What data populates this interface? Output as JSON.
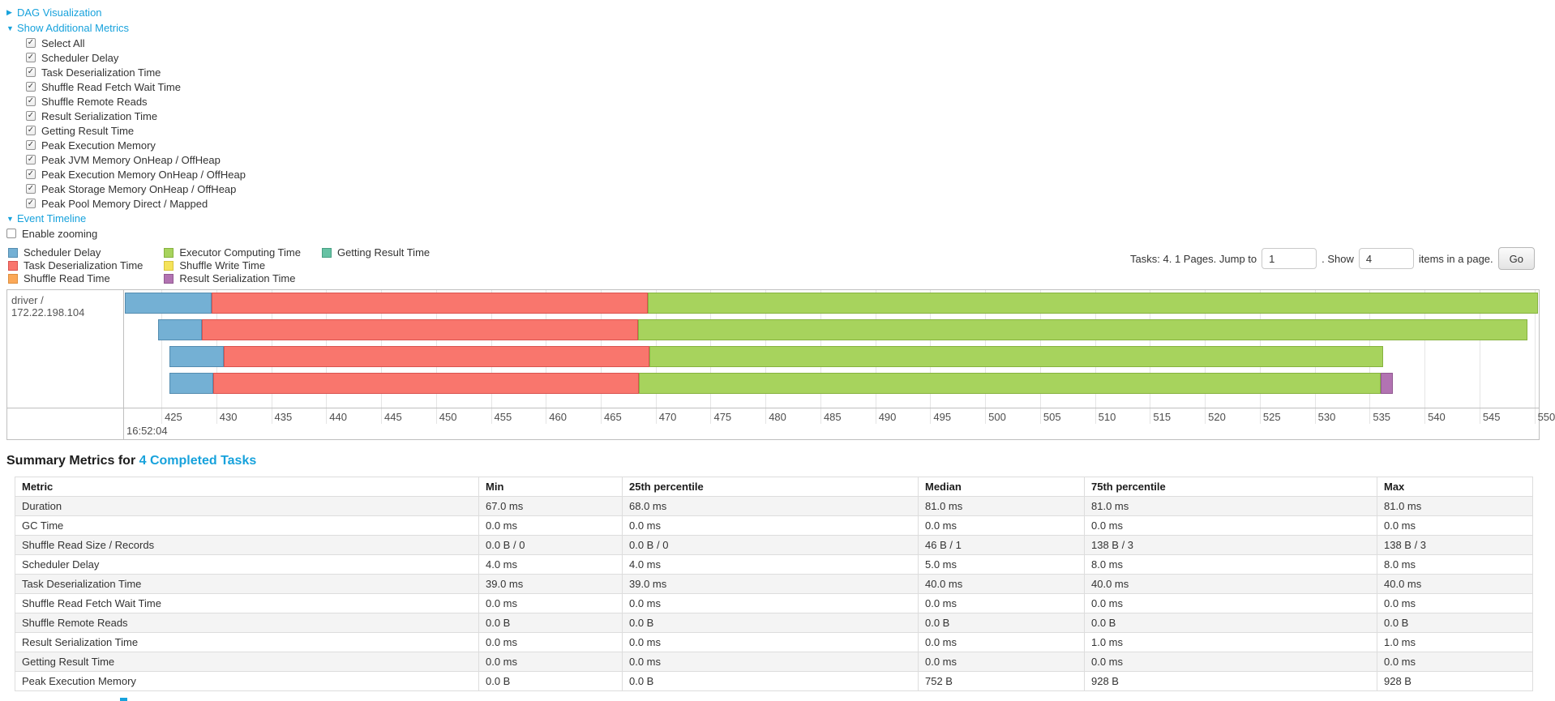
{
  "nav": {
    "dag_label": "DAG Visualization",
    "metrics_label": "Show Additional Metrics",
    "timeline_label": "Event Timeline",
    "enable_zooming_label": "Enable zooming"
  },
  "metric_checkboxes": [
    {
      "label": "Select All",
      "checked": true
    },
    {
      "label": "Scheduler Delay",
      "checked": true
    },
    {
      "label": "Task Deserialization Time",
      "checked": true
    },
    {
      "label": "Shuffle Read Fetch Wait Time",
      "checked": true
    },
    {
      "label": "Shuffle Remote Reads",
      "checked": true
    },
    {
      "label": "Result Serialization Time",
      "checked": true
    },
    {
      "label": "Getting Result Time",
      "checked": true
    },
    {
      "label": "Peak Execution Memory",
      "checked": true
    },
    {
      "label": "Peak JVM Memory OnHeap / OffHeap",
      "checked": true
    },
    {
      "label": "Peak Execution Memory OnHeap / OffHeap",
      "checked": true
    },
    {
      "label": "Peak Storage Memory OnHeap / OffHeap",
      "checked": true
    },
    {
      "label": "Peak Pool Memory Direct / Mapped",
      "checked": true
    }
  ],
  "pagination": {
    "prefix": "Tasks: 4. 1 Pages. Jump to",
    "jump_value": "1",
    "mid": ". Show",
    "show_value": "4",
    "suffix": "items in a page.",
    "go_label": "Go"
  },
  "chart_data": {
    "type": "timeline",
    "group_label": "driver / 172.22.198.104",
    "x_axis": {
      "min": 421.6,
      "max": 550.4,
      "ticks": [
        425,
        430,
        435,
        440,
        445,
        450,
        455,
        460,
        465,
        470,
        475,
        480,
        485,
        490,
        495,
        500,
        505,
        510,
        515,
        520,
        525,
        530,
        535,
        540,
        545,
        550
      ],
      "major_tick_label": "16:52:04"
    },
    "series": [
      {
        "id": "scheduler-delay",
        "label": "Scheduler Delay",
        "color": "#74B0D4",
        "border": "#548CB0"
      },
      {
        "id": "task-deserialization-time",
        "label": "Task Deserialization Time",
        "color": "#F9766D",
        "border": "#D9534F"
      },
      {
        "id": "shuffle-read-time",
        "label": "Shuffle Read Time",
        "color": "#FBA857",
        "border": "#DE8F3F"
      },
      {
        "id": "executor-computing-time",
        "label": "Executor Computing Time",
        "color": "#A7D35D",
        "border": "#86B23F"
      },
      {
        "id": "shuffle-write-time",
        "label": "Shuffle Write Time",
        "color": "#F5E35A",
        "border": "#D8C43E"
      },
      {
        "id": "result-serialization-time",
        "label": "Result Serialization Time",
        "color": "#B273B2",
        "border": "#925A92"
      },
      {
        "id": "getting-result-time",
        "label": "Getting Result Time",
        "color": "#66C2A4",
        "border": "#47A083"
      }
    ],
    "legend_layout": [
      [
        0,
        1,
        2
      ],
      [
        3,
        4,
        5
      ],
      [
        6
      ]
    ],
    "tasks": [
      {
        "segments": [
          {
            "series": "scheduler-delay",
            "start": 421.7,
            "end": 429.6
          },
          {
            "series": "task-deserialization-time",
            "start": 429.6,
            "end": 469.3
          },
          {
            "series": "executor-computing-time",
            "start": 469.3,
            "end": 550.3
          }
        ]
      },
      {
        "segments": [
          {
            "series": "scheduler-delay",
            "start": 424.7,
            "end": 428.7
          },
          {
            "series": "task-deserialization-time",
            "start": 428.7,
            "end": 468.4
          },
          {
            "series": "executor-computing-time",
            "start": 468.4,
            "end": 549.4
          }
        ]
      },
      {
        "segments": [
          {
            "series": "scheduler-delay",
            "start": 425.7,
            "end": 430.7
          },
          {
            "series": "task-deserialization-time",
            "start": 430.7,
            "end": 469.4
          },
          {
            "series": "executor-computing-time",
            "start": 469.4,
            "end": 536.2
          }
        ]
      },
      {
        "segments": [
          {
            "series": "scheduler-delay",
            "start": 425.7,
            "end": 429.7
          },
          {
            "series": "task-deserialization-time",
            "start": 429.7,
            "end": 468.5
          },
          {
            "series": "executor-computing-time",
            "start": 468.5,
            "end": 536.0
          },
          {
            "series": "result-serialization-time",
            "start": 536.0,
            "end": 537.1
          }
        ]
      }
    ]
  },
  "summary": {
    "title_prefix": "Summary Metrics for ",
    "title_link": "4 Completed Tasks",
    "table": {
      "headers": [
        "Metric",
        "Min",
        "25th percentile",
        "Median",
        "75th percentile",
        "Max"
      ],
      "rows": [
        {
          "metric": "Duration",
          "values": [
            "67.0 ms",
            "68.0 ms",
            "81.0 ms",
            "81.0 ms",
            "81.0 ms"
          ]
        },
        {
          "metric": "GC Time",
          "values": [
            "0.0 ms",
            "0.0 ms",
            "0.0 ms",
            "0.0 ms",
            "0.0 ms"
          ]
        },
        {
          "metric": "Shuffle Read Size / Records",
          "values": [
            "0.0 B / 0",
            "0.0 B / 0",
            "46 B / 1",
            "138 B / 3",
            "138 B / 3"
          ]
        },
        {
          "metric": "Scheduler Delay",
          "values": [
            "4.0 ms",
            "4.0 ms",
            "5.0 ms",
            "8.0 ms",
            "8.0 ms"
          ]
        },
        {
          "metric": "Task Deserialization Time",
          "values": [
            "39.0 ms",
            "39.0 ms",
            "40.0 ms",
            "40.0 ms",
            "40.0 ms"
          ]
        },
        {
          "metric": "Shuffle Read Fetch Wait Time",
          "values": [
            "0.0 ms",
            "0.0 ms",
            "0.0 ms",
            "0.0 ms",
            "0.0 ms"
          ]
        },
        {
          "metric": "Shuffle Remote Reads",
          "values": [
            "0.0 B",
            "0.0 B",
            "0.0 B",
            "0.0 B",
            "0.0 B"
          ]
        },
        {
          "metric": "Result Serialization Time",
          "values": [
            "0.0 ms",
            "0.0 ms",
            "0.0 ms",
            "1.0 ms",
            "1.0 ms"
          ]
        },
        {
          "metric": "Getting Result Time",
          "values": [
            "0.0 ms",
            "0.0 ms",
            "0.0 ms",
            "0.0 ms",
            "0.0 ms"
          ]
        },
        {
          "metric": "Peak Execution Memory",
          "values": [
            "0.0 B",
            "0.0 B",
            "752 B",
            "928 B",
            "928 B"
          ]
        }
      ]
    }
  }
}
